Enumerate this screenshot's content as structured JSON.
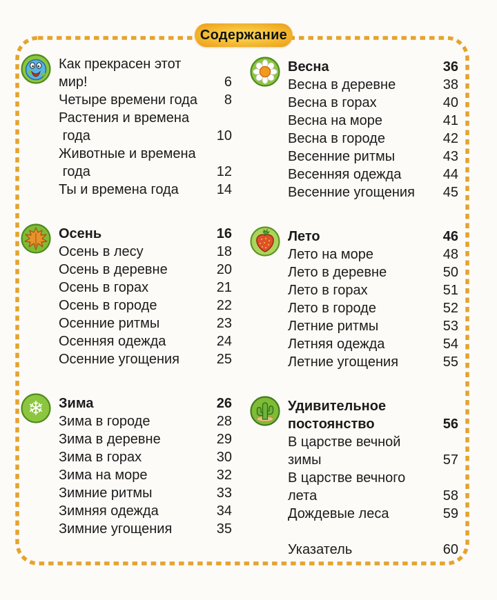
{
  "header": {
    "title": "Содержание"
  },
  "colors": {
    "border_dash": "#E5A32E",
    "badge_gold": "#F0A922",
    "icon_circle_green": "#8CC63E",
    "icon_ring_green": "#4E8A1F",
    "text": "#1B1B1B"
  },
  "sections": [
    {
      "column": "left",
      "icon": "globe-icon",
      "title": null,
      "entries": [
        {
          "text": "Как прекрасен этот мир!",
          "page": "6"
        },
        {
          "text": "Четыре времени года",
          "page": "8"
        },
        {
          "text": "Растения и времена\n года",
          "page": "10"
        },
        {
          "text": "Животные и времена\n года",
          "page": "12"
        },
        {
          "text": "Ты и времена года",
          "page": "14"
        }
      ]
    },
    {
      "column": "left",
      "icon": "autumn-leaf-icon",
      "title": {
        "text": "Осень",
        "page": "16"
      },
      "entries": [
        {
          "text": "Осень в лесу",
          "page": "18"
        },
        {
          "text": "Осень в деревне",
          "page": "20"
        },
        {
          "text": "Осень в горах",
          "page": "21"
        },
        {
          "text": "Осень в городе",
          "page": "22"
        },
        {
          "text": "Осенние ритмы",
          "page": "23"
        },
        {
          "text": "Осенняя одежда",
          "page": "24"
        },
        {
          "text": "Осенние угощения",
          "page": "25"
        }
      ]
    },
    {
      "column": "left",
      "icon": "snowflake-icon",
      "title": {
        "text": "Зима",
        "page": "26"
      },
      "entries": [
        {
          "text": "Зима в городе",
          "page": "28"
        },
        {
          "text": "Зима в деревне",
          "page": "29"
        },
        {
          "text": "Зима в горах",
          "page": "30"
        },
        {
          "text": "Зима на море",
          "page": "32"
        },
        {
          "text": "Зимние ритмы",
          "page": "33"
        },
        {
          "text": "Зимняя одежда",
          "page": "34"
        },
        {
          "text": "Зимние угощения",
          "page": "35"
        }
      ]
    },
    {
      "column": "right",
      "icon": "flower-icon",
      "title": {
        "text": "Весна",
        "page": "36"
      },
      "entries": [
        {
          "text": "Весна в деревне",
          "page": "38"
        },
        {
          "text": "Весна в горах",
          "page": "40"
        },
        {
          "text": "Весна на море",
          "page": "41"
        },
        {
          "text": "Весна в городе",
          "page": "42"
        },
        {
          "text": "Весенние ритмы",
          "page": "43"
        },
        {
          "text": "Весенняя одежда",
          "page": "44"
        },
        {
          "text": "Весенние угощения",
          "page": "45"
        }
      ]
    },
    {
      "column": "right",
      "icon": "strawberry-icon",
      "title": {
        "text": "Лето",
        "page": "46"
      },
      "entries": [
        {
          "text": "Лето на море",
          "page": "48"
        },
        {
          "text": "Лето в деревне",
          "page": "50"
        },
        {
          "text": "Лето в горах",
          "page": "51"
        },
        {
          "text": "Лето в городе",
          "page": "52"
        },
        {
          "text": "Летние ритмы",
          "page": "53"
        },
        {
          "text": "Летняя одежда",
          "page": "54"
        },
        {
          "text": "Летние угощения",
          "page": "55"
        }
      ]
    },
    {
      "column": "right",
      "icon": "cactus-icon",
      "title": {
        "text": "Удивительное\nпостоянство",
        "page": "56"
      },
      "entries": [
        {
          "text": "В царстве вечной зимы",
          "page": "57"
        },
        {
          "text": "В царстве вечного лета",
          "page": "58"
        },
        {
          "text": "Дождевые леса",
          "page": "59"
        },
        {
          "spacer": true
        },
        {
          "text": "Указатель",
          "page": "60"
        }
      ]
    }
  ]
}
